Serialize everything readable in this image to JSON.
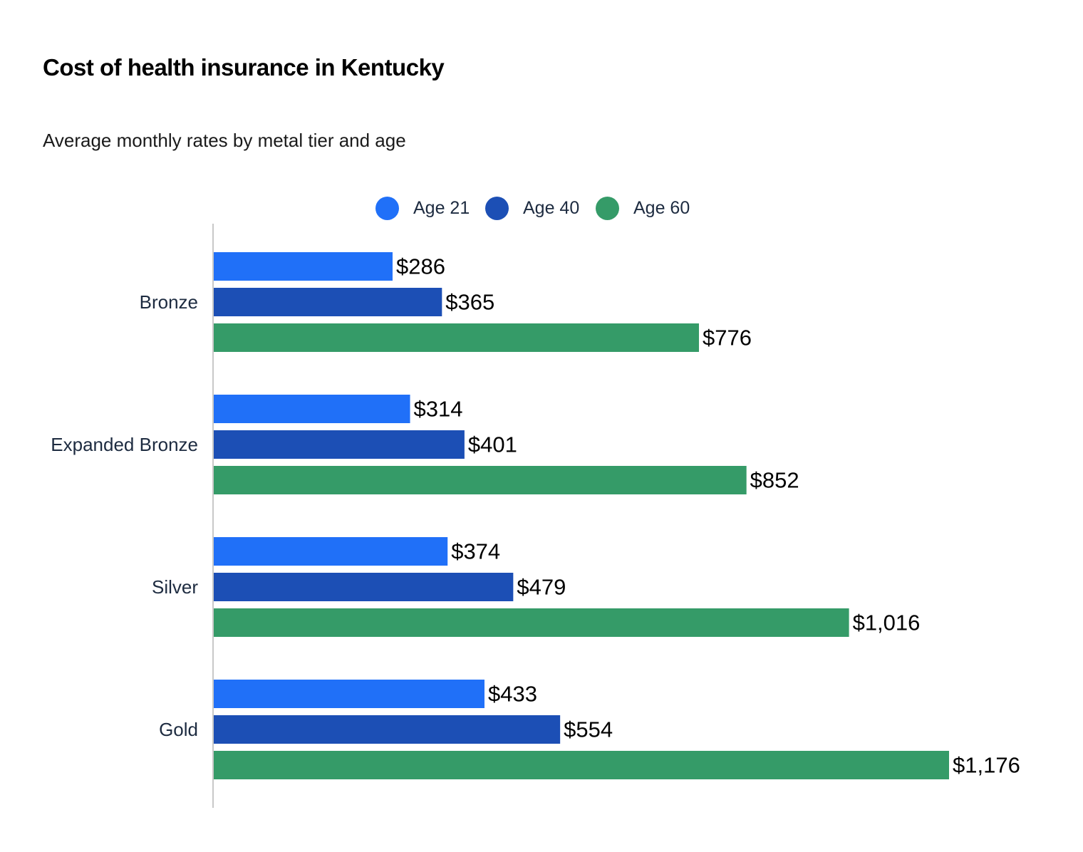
{
  "chart_title": "Cost of health insurance in Kentucky",
  "chart_subtitle": "Average monthly rates by metal tier and age",
  "legend": [
    {
      "label": "Age 21",
      "color": "#2070f8"
    },
    {
      "label": "Age 40",
      "color": "#1c4fb5"
    },
    {
      "label": "Age 60",
      "color": "#359b68"
    }
  ],
  "chart_data": {
    "type": "bar",
    "orientation": "horizontal",
    "title": "Cost of health insurance in Kentucky",
    "subtitle": "Average monthly rates by metal tier and age",
    "categories": [
      "Bronze",
      "Expanded Bronze",
      "Silver",
      "Gold"
    ],
    "series": [
      {
        "name": "Age 21",
        "color": "#2070f8",
        "values": [
          286,
          314,
          374,
          433
        ],
        "labels": [
          "$286",
          "$314",
          "$374",
          "$433"
        ]
      },
      {
        "name": "Age 40",
        "color": "#1c4fb5",
        "values": [
          365,
          401,
          479,
          554
        ],
        "labels": [
          "$365",
          "$401",
          "$479",
          "$554"
        ]
      },
      {
        "name": "Age 60",
        "color": "#359b68",
        "values": [
          776,
          852,
          1016,
          1176
        ],
        "labels": [
          "$776",
          "$852",
          "$1,016",
          "$1,176"
        ]
      }
    ],
    "xlim": [
      0,
      1176
    ],
    "grid": false,
    "legend_position": "top-center"
  }
}
